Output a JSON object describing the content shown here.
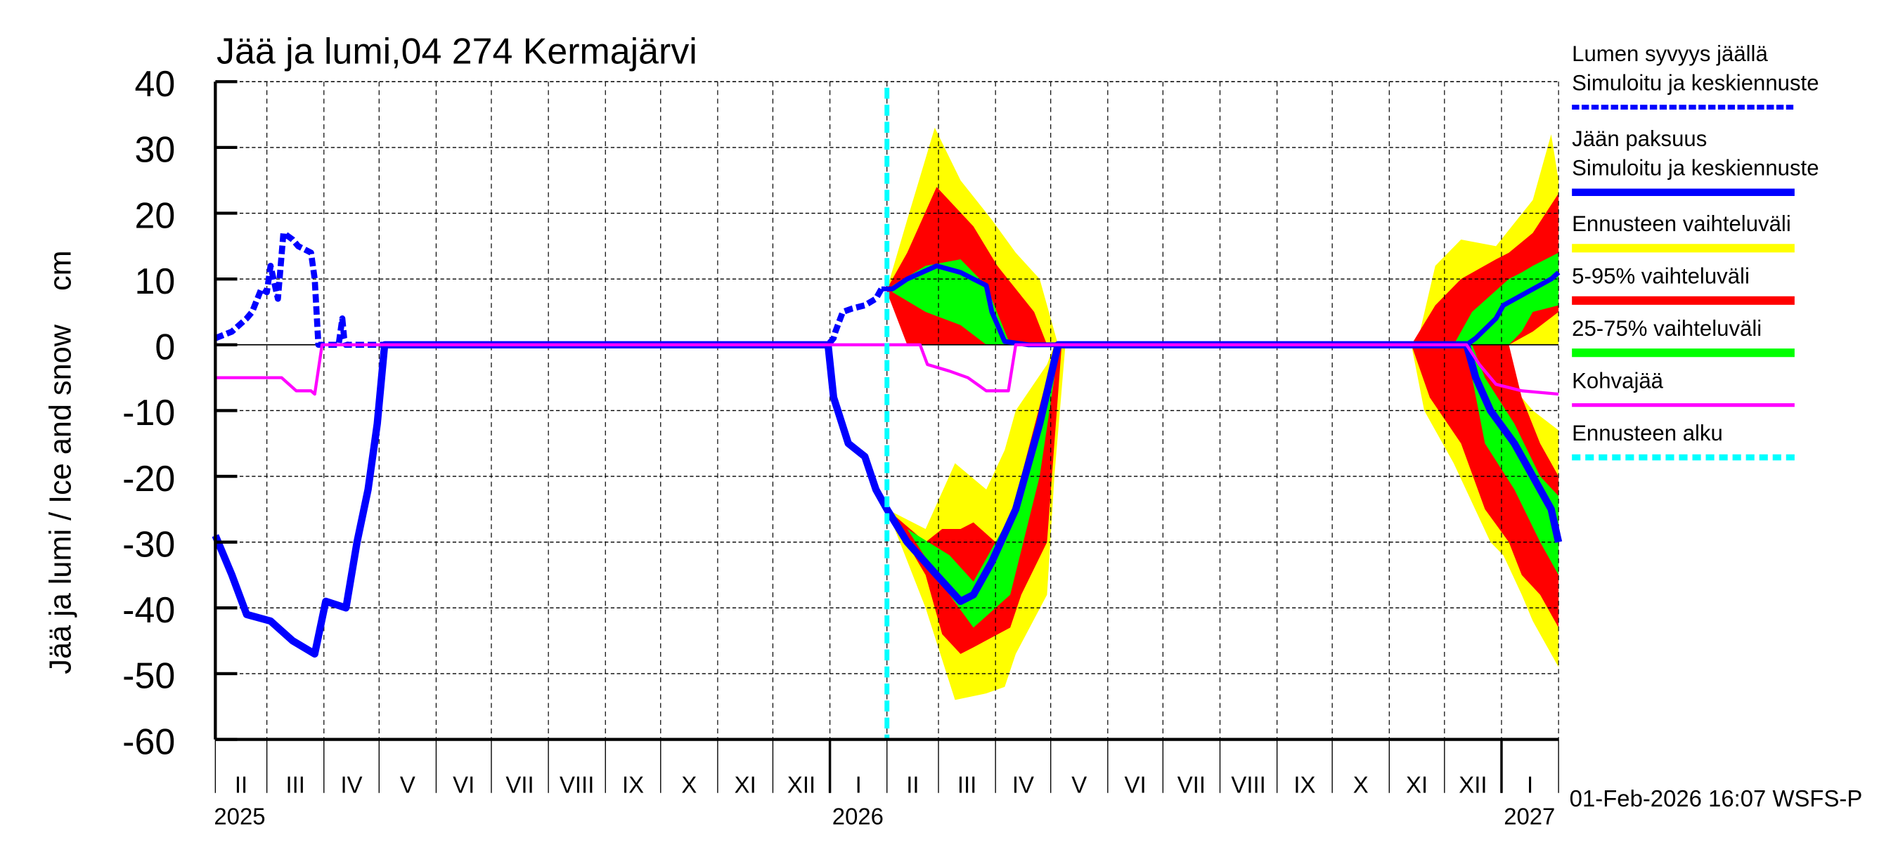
{
  "chart_data": {
    "type": "area",
    "title": "Jää ja lumi,04 274 Kermajärvi",
    "ylabel": "Jää ja lumi / Ice and snow    cm",
    "ylim": [
      -60,
      40
    ],
    "yticks": [
      40,
      30,
      20,
      10,
      0,
      -10,
      -20,
      -30,
      -40,
      -50,
      -60
    ],
    "xlim_days": [
      0,
      730
    ],
    "grid": true,
    "legend_placement": "right",
    "footer": "01-Feb-2026 16:07 WSFS-P",
    "months": [
      {
        "label": "II",
        "start": 0,
        "end": 28
      },
      {
        "label": "III",
        "start": 28,
        "end": 59
      },
      {
        "label": "IV",
        "start": 59,
        "end": 89
      },
      {
        "label": "V",
        "start": 89,
        "end": 120
      },
      {
        "label": "VI",
        "start": 120,
        "end": 150
      },
      {
        "label": "VII",
        "start": 150,
        "end": 181
      },
      {
        "label": "VIII",
        "start": 181,
        "end": 212
      },
      {
        "label": "IX",
        "start": 212,
        "end": 242
      },
      {
        "label": "X",
        "start": 242,
        "end": 273
      },
      {
        "label": "XI",
        "start": 273,
        "end": 303
      },
      {
        "label": "XII",
        "start": 303,
        "end": 334
      },
      {
        "label": "I",
        "start": 334,
        "end": 365
      },
      {
        "label": "II",
        "start": 365,
        "end": 393
      },
      {
        "label": "III",
        "start": 393,
        "end": 424
      },
      {
        "label": "IV",
        "start": 424,
        "end": 454
      },
      {
        "label": "V",
        "start": 454,
        "end": 485
      },
      {
        "label": "VI",
        "start": 485,
        "end": 515
      },
      {
        "label": "VII",
        "start": 515,
        "end": 546
      },
      {
        "label": "VIII",
        "start": 546,
        "end": 577
      },
      {
        "label": "IX",
        "start": 577,
        "end": 607
      },
      {
        "label": "X",
        "start": 607,
        "end": 638
      },
      {
        "label": "XI",
        "start": 638,
        "end": 668
      },
      {
        "label": "XII",
        "start": 668,
        "end": 699
      },
      {
        "label": "I",
        "start": 699,
        "end": 730
      }
    ],
    "years": [
      {
        "label": "2025",
        "day": 0
      },
      {
        "label": "2026",
        "day": 334
      },
      {
        "label": "2027",
        "day": 699
      }
    ],
    "forecast_start_day": 365,
    "colors": {
      "snow": "#0000ff",
      "ice": "#0000ff",
      "range": "#ffff00",
      "p5_95": "#ff0000",
      "p25_75": "#00ff00",
      "slush": "#ff00ff",
      "forecast_start": "#00ffff"
    },
    "bands": [
      {
        "name": "Ennusteen vaihteluväli",
        "color": "#ffff00",
        "points": [
          [
            365,
            8.5,
            8.5
          ],
          [
            376,
            0,
            19
          ],
          [
            391,
            0,
            33
          ],
          [
            405,
            0,
            25
          ],
          [
            422,
            0,
            19
          ],
          [
            435,
            0,
            14
          ],
          [
            448,
            0,
            10
          ],
          [
            458,
            0,
            0
          ]
        ]
      },
      {
        "name": "5-95% vaihteluväli",
        "color": "#ff0000",
        "points": [
          [
            365,
            8,
            8.5
          ],
          [
            376,
            0,
            14
          ],
          [
            392,
            0,
            24
          ],
          [
            412,
            0,
            18
          ],
          [
            425,
            0,
            12
          ],
          [
            445,
            0,
            5
          ],
          [
            452,
            0,
            0
          ]
        ]
      },
      {
        "name": "25-75% vaihteluväli",
        "color": "#00ff00",
        "points": [
          [
            368,
            8,
            9
          ],
          [
            386,
            5,
            12
          ],
          [
            405,
            3,
            13
          ],
          [
            419,
            0,
            9
          ],
          [
            432,
            0,
            0
          ]
        ]
      },
      {
        "name": "Ennusteen vaihteluväli",
        "color": "#ffff00",
        "points": [
          [
            365,
            -25,
            -25
          ],
          [
            386,
            -40,
            -28
          ],
          [
            402,
            -54,
            -18
          ],
          [
            419,
            -53,
            -22
          ],
          [
            429,
            -52,
            -16
          ],
          [
            435,
            -47,
            -10
          ],
          [
            452,
            -38,
            -3
          ],
          [
            456,
            -20,
            0
          ],
          [
            462,
            0,
            0
          ]
        ]
      },
      {
        "name": "5-95% vaihteluväli",
        "color": "#ff0000",
        "points": [
          [
            365,
            -25,
            -25
          ],
          [
            386,
            -35,
            -30
          ],
          [
            395,
            -44,
            -28
          ],
          [
            405,
            -47,
            -28
          ],
          [
            412,
            -46,
            -27
          ],
          [
            432,
            -43,
            -32
          ],
          [
            438,
            -38,
            -20
          ],
          [
            452,
            -30,
            -5
          ],
          [
            456,
            -15,
            0
          ],
          [
            460,
            0,
            0
          ]
        ]
      },
      {
        "name": "25-75% vaihteluväli",
        "color": "#00ff00",
        "points": [
          [
            376,
            -28,
            -28
          ],
          [
            399,
            -38,
            -32
          ],
          [
            412,
            -43,
            -36
          ],
          [
            432,
            -38,
            -26
          ],
          [
            448,
            -20,
            -10
          ],
          [
            456,
            -5,
            -1
          ],
          [
            457,
            0,
            0
          ]
        ]
      },
      {
        "name": "Ennusteen vaihteluväli",
        "color": "#ffff00",
        "points": [
          [
            653,
            0,
            0
          ],
          [
            663,
            0,
            12
          ],
          [
            677,
            0,
            16
          ],
          [
            696,
            0,
            15
          ],
          [
            716,
            0,
            22
          ],
          [
            726,
            0,
            32
          ],
          [
            730,
            0,
            25
          ]
        ]
      },
      {
        "name": "5-95% vaihteluväli",
        "color": "#ff0000",
        "points": [
          [
            650,
            0,
            0
          ],
          [
            663,
            0,
            6
          ],
          [
            677,
            0,
            10
          ],
          [
            696,
            0,
            13
          ],
          [
            703,
            0,
            14
          ],
          [
            716,
            2,
            17
          ],
          [
            730,
            5,
            23
          ]
        ]
      },
      {
        "name": "25-75% vaihteluväli",
        "color": "#00ff00",
        "points": [
          [
            673,
            0,
            0
          ],
          [
            683,
            0,
            5
          ],
          [
            703,
            0,
            10
          ],
          [
            710,
            2,
            11
          ],
          [
            716,
            5,
            12
          ],
          [
            730,
            6,
            14
          ]
        ]
      },
      {
        "name": "Ennusteen vaihteluväli",
        "color": "#ffff00",
        "points": [
          [
            650,
            0,
            0
          ],
          [
            657,
            -10,
            0
          ],
          [
            673,
            -18,
            0
          ],
          [
            693,
            -30,
            0
          ],
          [
            700,
            -32,
            -2
          ],
          [
            710,
            -38,
            -8
          ],
          [
            716,
            -42,
            -10
          ],
          [
            730,
            -49,
            -13
          ]
        ]
      },
      {
        "name": "5-95% vaihteluväli",
        "color": "#ff0000",
        "points": [
          [
            650,
            0,
            0
          ],
          [
            660,
            -8,
            0
          ],
          [
            677,
            -15,
            0
          ],
          [
            690,
            -25,
            0
          ],
          [
            703,
            -30,
            0
          ],
          [
            710,
            -35,
            -8
          ],
          [
            720,
            -38,
            -15
          ],
          [
            730,
            -43,
            -20
          ]
        ]
      },
      {
        "name": "25-75% vaihteluväli",
        "color": "#00ff00",
        "points": [
          [
            680,
            0,
            0
          ],
          [
            683,
            -5,
            0
          ],
          [
            690,
            -15,
            -5
          ],
          [
            706,
            -22,
            -12
          ],
          [
            720,
            -30,
            -20
          ],
          [
            730,
            -35,
            -23
          ]
        ]
      }
    ],
    "series": [
      {
        "name": "Lumen syvyys jäällä",
        "style": "dashed",
        "color": "#0000ff",
        "points": [
          [
            0,
            1
          ],
          [
            9,
            2
          ],
          [
            17,
            4
          ],
          [
            20,
            5
          ],
          [
            25,
            8.5
          ],
          [
            28,
            8
          ],
          [
            30,
            12
          ],
          [
            34,
            7
          ],
          [
            37,
            17
          ],
          [
            42,
            16
          ],
          [
            45,
            15
          ],
          [
            52,
            14
          ],
          [
            54,
            10
          ],
          [
            56,
            0
          ],
          [
            67,
            0
          ],
          [
            68,
            2
          ],
          [
            69,
            4
          ],
          [
            70,
            1
          ],
          [
            71,
            0
          ],
          [
            333,
            0
          ],
          [
            336,
            1
          ],
          [
            337,
            2
          ],
          [
            341,
            5
          ],
          [
            346,
            5.5
          ],
          [
            353,
            6
          ],
          [
            359,
            7
          ],
          [
            362,
            8.5
          ]
        ]
      },
      {
        "name": "Simuloitu ja keskiennuste (lumi)",
        "style": "solid-thin",
        "color": "#0000ff",
        "points": [
          [
            362,
            8.5
          ],
          [
            368,
            8.5
          ],
          [
            376,
            10
          ],
          [
            392,
            12
          ],
          [
            405,
            11
          ],
          [
            412,
            10
          ],
          [
            419,
            9
          ],
          [
            422,
            5
          ],
          [
            429,
            0.5
          ],
          [
            442,
            0
          ],
          [
            680,
            0
          ],
          [
            685,
            1
          ],
          [
            696,
            4
          ],
          [
            700,
            6
          ],
          [
            713,
            8
          ],
          [
            726,
            10
          ],
          [
            730,
            11
          ]
        ]
      },
      {
        "name": "Jään paksuus",
        "style": "solid",
        "color": "#0000ff",
        "points": [
          [
            0,
            -29
          ],
          [
            9,
            -35
          ],
          [
            17,
            -41
          ],
          [
            30,
            -42
          ],
          [
            42,
            -45
          ],
          [
            54,
            -47
          ],
          [
            60,
            -39
          ],
          [
            71,
            -40
          ],
          [
            77,
            -30
          ],
          [
            83,
            -22
          ],
          [
            88,
            -12
          ],
          [
            92,
            0
          ],
          [
            333,
            0
          ],
          [
            336,
            -8
          ],
          [
            344,
            -15
          ],
          [
            353,
            -17
          ],
          [
            359,
            -22
          ],
          [
            365,
            -25
          ],
          [
            376,
            -30
          ],
          [
            392,
            -35
          ],
          [
            405,
            -39
          ],
          [
            412,
            -38
          ],
          [
            422,
            -33
          ],
          [
            435,
            -25
          ],
          [
            448,
            -12
          ],
          [
            458,
            0
          ],
          [
            680,
            0
          ],
          [
            685,
            -5
          ],
          [
            693,
            -10
          ],
          [
            706,
            -15
          ],
          [
            716,
            -20
          ],
          [
            726,
            -25
          ],
          [
            730,
            -30
          ]
        ]
      },
      {
        "name": "Kohvajää",
        "style": "solid-thin",
        "color": "#ff00ff",
        "points": [
          [
            0,
            -5
          ],
          [
            36,
            -5
          ],
          [
            44,
            -7
          ],
          [
            52,
            -7
          ],
          [
            54,
            -7.5
          ],
          [
            58,
            0
          ],
          [
            383,
            0
          ],
          [
            387,
            -3
          ],
          [
            399,
            -4
          ],
          [
            409,
            -5
          ],
          [
            419,
            -7
          ],
          [
            431,
            -7
          ],
          [
            435,
            0
          ],
          [
            680,
            0
          ],
          [
            687,
            -3
          ],
          [
            696,
            -6
          ],
          [
            710,
            -7
          ],
          [
            730,
            -7.5
          ]
        ]
      }
    ],
    "legend": [
      {
        "label": "Lumen syvyys jäällä",
        "sub": "Simuloitu ja keskiennuste",
        "style": "dashed",
        "color": "#0000ff"
      },
      {
        "label": "Jään paksuus",
        "sub": "Simuloitu ja keskiennuste",
        "style": "solid",
        "color": "#0000ff"
      },
      {
        "label": "Ennusteen vaihteluväli",
        "style": "thick",
        "color": "#ffff00"
      },
      {
        "label": "5-95% vaihteluväli",
        "style": "thick",
        "color": "#ff0000"
      },
      {
        "label": "25-75% vaihteluväli",
        "style": "thick",
        "color": "#00ff00"
      },
      {
        "label": "Kohvajää",
        "style": "thin",
        "color": "#ff00ff"
      },
      {
        "label": "Ennusteen alku",
        "style": "cyan-dashed",
        "color": "#00ffff"
      }
    ]
  }
}
